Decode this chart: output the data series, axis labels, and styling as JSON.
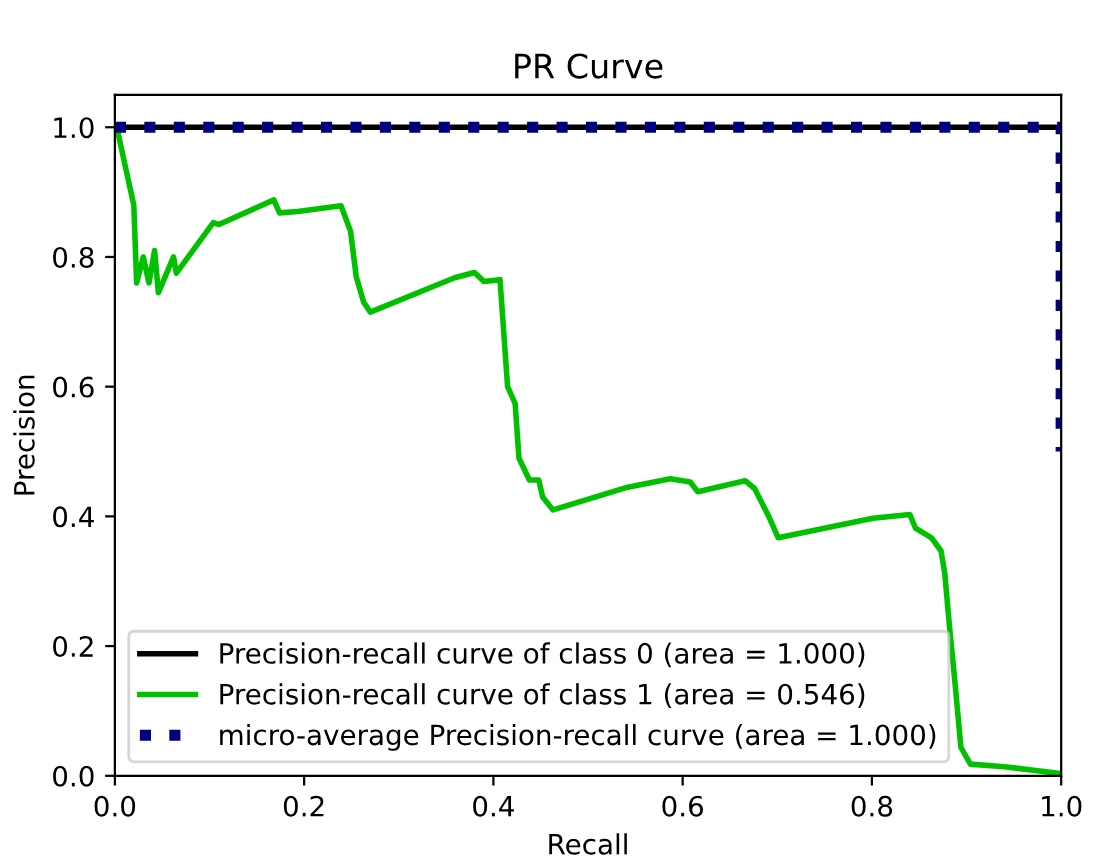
{
  "chart_data": {
    "type": "line",
    "title": "PR Curve",
    "xlabel": "Recall",
    "ylabel": "Precision",
    "xlim": [
      0.0,
      1.0
    ],
    "ylim": [
      0.0,
      1.05
    ],
    "xticks": [
      {
        "value": 0.0,
        "label": "0.0"
      },
      {
        "value": 0.2,
        "label": "0.2"
      },
      {
        "value": 0.4,
        "label": "0.4"
      },
      {
        "value": 0.6,
        "label": "0.6"
      },
      {
        "value": 0.8,
        "label": "0.8"
      },
      {
        "value": 1.0,
        "label": "1.0"
      }
    ],
    "yticks": [
      {
        "value": 0.0,
        "label": "0.0"
      },
      {
        "value": 0.2,
        "label": "0.2"
      },
      {
        "value": 0.4,
        "label": "0.4"
      },
      {
        "value": 0.6,
        "label": "0.6"
      },
      {
        "value": 0.8,
        "label": "0.8"
      },
      {
        "value": 1.0,
        "label": "1.0"
      }
    ],
    "grid": false,
    "legend": "bottom left",
    "series": [
      {
        "name": "Precision-recall curve of class 0 (area = 1.000)",
        "color": "#000000",
        "line_style": "solid",
        "x": [
          0.0,
          1.0
        ],
        "values": [
          1.0,
          1.0
        ]
      },
      {
        "name": "Precision-recall curve of class 1 (area = 0.546)",
        "color": "#00c000",
        "line_style": "solid",
        "x": [
          0.002,
          0.02,
          0.023,
          0.03,
          0.036,
          0.042,
          0.046,
          0.062,
          0.065,
          0.104,
          0.11,
          0.168,
          0.174,
          0.193,
          0.239,
          0.249,
          0.255,
          0.263,
          0.27,
          0.359,
          0.38,
          0.39,
          0.407,
          0.415,
          0.423,
          0.427,
          0.438,
          0.448,
          0.452,
          0.463,
          0.542,
          0.587,
          0.608,
          0.616,
          0.666,
          0.676,
          0.691,
          0.701,
          0.801,
          0.84,
          0.846,
          0.863,
          0.873,
          0.877,
          0.882,
          0.888,
          0.894,
          0.904,
          0.94,
          0.996
        ],
        "values": [
          1.0,
          0.88,
          0.76,
          0.8,
          0.76,
          0.81,
          0.745,
          0.8,
          0.775,
          0.853,
          0.85,
          0.888,
          0.868,
          0.87,
          0.879,
          0.84,
          0.77,
          0.73,
          0.715,
          0.768,
          0.776,
          0.762,
          0.765,
          0.6,
          0.574,
          0.49,
          0.456,
          0.456,
          0.43,
          0.41,
          0.445,
          0.458,
          0.453,
          0.438,
          0.455,
          0.443,
          0.4,
          0.367,
          0.397,
          0.403,
          0.382,
          0.367,
          0.347,
          0.312,
          0.23,
          0.14,
          0.044,
          0.018,
          0.014,
          0.004
        ]
      },
      {
        "name": "micro-average Precision-recall curve (area = 1.000)",
        "color": "#000080",
        "line_style": "dotted",
        "x": [
          0.0,
          1.0,
          1.0
        ],
        "values": [
          1.0,
          1.0,
          0.5
        ]
      }
    ]
  }
}
